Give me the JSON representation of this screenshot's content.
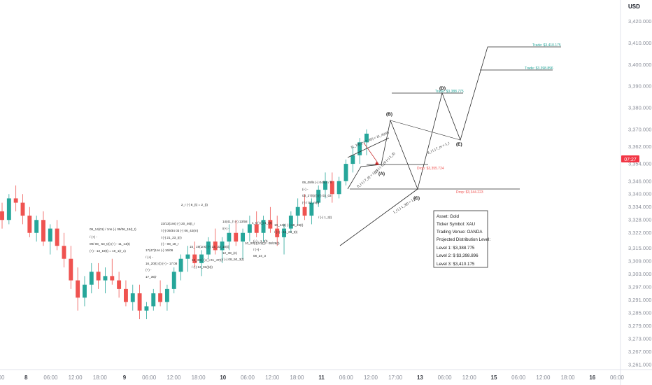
{
  "currency": "USD",
  "price_badge": "07:27",
  "chart_data": {
    "type": "candlestick",
    "y_axis": {
      "ticks": [
        "3,261.000",
        "3,267.000",
        "3,273.000",
        "3,279.000",
        "3,285.000",
        "3,291.000",
        "3,297.000",
        "3,303.000",
        "3,309.000",
        "3,315.000",
        "3,322.000",
        "3,328.000",
        "3,334.000",
        "3,340.000",
        "3,346.000",
        "3,354.000",
        "3,362.000",
        "3,370.000",
        "3,380.000",
        "3,390.000",
        "3,400.000",
        "3,410.000",
        "3,420.000"
      ],
      "ylim": [
        3258,
        3428
      ]
    },
    "x_axis": {
      "labels": [
        {
          "t": "00",
          "bold": false
        },
        {
          "t": "8",
          "bold": true
        },
        {
          "t": "06:00",
          "bold": false
        },
        {
          "t": "12:00",
          "bold": false
        },
        {
          "t": "18:00",
          "bold": false
        },
        {
          "t": "9",
          "bold": true
        },
        {
          "t": "06:00",
          "bold": false
        },
        {
          "t": "12:00",
          "bold": false
        },
        {
          "t": "18:00",
          "bold": false
        },
        {
          "t": "10",
          "bold": true
        },
        {
          "t": "06:00",
          "bold": false
        },
        {
          "t": "12:00",
          "bold": false
        },
        {
          "t": "18:00",
          "bold": false
        },
        {
          "t": "11",
          "bold": true
        },
        {
          "t": "06:00",
          "bold": false
        },
        {
          "t": "12:00",
          "bold": false
        },
        {
          "t": "17:00",
          "bold": false
        },
        {
          "t": "13",
          "bold": true
        },
        {
          "t": "06:00",
          "bold": false
        },
        {
          "t": "12:00",
          "bold": false
        },
        {
          "t": "15",
          "bold": true
        },
        {
          "t": "06:00",
          "bold": false
        },
        {
          "t": "12:00",
          "bold": false
        },
        {
          "t": "18:00",
          "bold": false
        },
        {
          "t": "16",
          "bold": true
        },
        {
          "t": "06:00",
          "bold": false
        }
      ]
    },
    "candles": [
      {
        "o": 3332,
        "h": 3336,
        "l": 3324,
        "c": 3328
      },
      {
        "o": 3328,
        "h": 3340,
        "l": 3326,
        "c": 3338
      },
      {
        "o": 3338,
        "h": 3344,
        "l": 3332,
        "c": 3336
      },
      {
        "o": 3336,
        "h": 3340,
        "l": 3326,
        "c": 3330
      },
      {
        "o": 3330,
        "h": 3334,
        "l": 3320,
        "c": 3322
      },
      {
        "o": 3322,
        "h": 3330,
        "l": 3318,
        "c": 3328
      },
      {
        "o": 3328,
        "h": 3332,
        "l": 3316,
        "c": 3318
      },
      {
        "o": 3318,
        "h": 3326,
        "l": 3312,
        "c": 3324
      },
      {
        "o": 3324,
        "h": 3328,
        "l": 3314,
        "c": 3316
      },
      {
        "o": 3316,
        "h": 3322,
        "l": 3306,
        "c": 3310
      },
      {
        "o": 3310,
        "h": 3316,
        "l": 3296,
        "c": 3300
      },
      {
        "o": 3300,
        "h": 3306,
        "l": 3286,
        "c": 3292
      },
      {
        "o": 3292,
        "h": 3302,
        "l": 3288,
        "c": 3298
      },
      {
        "o": 3298,
        "h": 3308,
        "l": 3294,
        "c": 3304
      },
      {
        "o": 3304,
        "h": 3308,
        "l": 3296,
        "c": 3300
      },
      {
        "o": 3300,
        "h": 3306,
        "l": 3294,
        "c": 3302
      },
      {
        "o": 3302,
        "h": 3310,
        "l": 3298,
        "c": 3300
      },
      {
        "o": 3300,
        "h": 3304,
        "l": 3292,
        "c": 3296
      },
      {
        "o": 3296,
        "h": 3300,
        "l": 3288,
        "c": 3290
      },
      {
        "o": 3290,
        "h": 3298,
        "l": 3286,
        "c": 3294
      },
      {
        "o": 3294,
        "h": 3298,
        "l": 3282,
        "c": 3286
      },
      {
        "o": 3286,
        "h": 3290,
        "l": 3282,
        "c": 3288
      },
      {
        "o": 3288,
        "h": 3296,
        "l": 3286,
        "c": 3294
      },
      {
        "o": 3294,
        "h": 3300,
        "l": 3288,
        "c": 3290
      },
      {
        "o": 3290,
        "h": 3298,
        "l": 3286,
        "c": 3296
      },
      {
        "o": 3296,
        "h": 3306,
        "l": 3294,
        "c": 3304
      },
      {
        "o": 3304,
        "h": 3312,
        "l": 3300,
        "c": 3310
      },
      {
        "o": 3310,
        "h": 3316,
        "l": 3304,
        "c": 3312
      },
      {
        "o": 3312,
        "h": 3318,
        "l": 3306,
        "c": 3308
      },
      {
        "o": 3308,
        "h": 3314,
        "l": 3302,
        "c": 3312
      },
      {
        "o": 3312,
        "h": 3320,
        "l": 3310,
        "c": 3318
      },
      {
        "o": 3318,
        "h": 3324,
        "l": 3312,
        "c": 3314
      },
      {
        "o": 3314,
        "h": 3320,
        "l": 3308,
        "c": 3318
      },
      {
        "o": 3318,
        "h": 3326,
        "l": 3314,
        "c": 3322
      },
      {
        "o": 3322,
        "h": 3328,
        "l": 3316,
        "c": 3318
      },
      {
        "o": 3318,
        "h": 3324,
        "l": 3310,
        "c": 3322
      },
      {
        "o": 3322,
        "h": 3330,
        "l": 3318,
        "c": 3326
      },
      {
        "o": 3326,
        "h": 3332,
        "l": 3320,
        "c": 3322
      },
      {
        "o": 3322,
        "h": 3330,
        "l": 3318,
        "c": 3328
      },
      {
        "o": 3328,
        "h": 3334,
        "l": 3322,
        "c": 3324
      },
      {
        "o": 3324,
        "h": 3330,
        "l": 3316,
        "c": 3320
      },
      {
        "o": 3320,
        "h": 3326,
        "l": 3312,
        "c": 3324
      },
      {
        "o": 3324,
        "h": 3332,
        "l": 3322,
        "c": 3330
      },
      {
        "o": 3330,
        "h": 3338,
        "l": 3326,
        "c": 3334
      },
      {
        "o": 3334,
        "h": 3340,
        "l": 3328,
        "c": 3330
      },
      {
        "o": 3330,
        "h": 3338,
        "l": 3326,
        "c": 3336
      },
      {
        "o": 3336,
        "h": 3344,
        "l": 3334,
        "c": 3342
      },
      {
        "o": 3342,
        "h": 3350,
        "l": 3338,
        "c": 3346
      },
      {
        "o": 3346,
        "h": 3350,
        "l": 3336,
        "c": 3340
      },
      {
        "o": 3340,
        "h": 3348,
        "l": 3338,
        "c": 3346
      },
      {
        "o": 3346,
        "h": 3356,
        "l": 3344,
        "c": 3354
      },
      {
        "o": 3354,
        "h": 3362,
        "l": 3350,
        "c": 3358
      },
      {
        "o": 3358,
        "h": 3366,
        "l": 3354,
        "c": 3364
      },
      {
        "o": 3364,
        "h": 3370,
        "l": 3358,
        "c": 3368
      }
    ]
  },
  "notes": [
    {
      "id": "n1",
      "text": "09_14(01) / 1ns (-) 09/06_15(t_t)"
    },
    {
      "id": "n2",
      "text": "/ (+) -"
    },
    {
      "id": "n3",
      "text": "09/ 08_ 53_t(t) (+) - 11_14(t)"
    },
    {
      "id": "n4",
      "text": "(+) - 13_19(t) = 10_1(r_c)"
    },
    {
      "id": "n5",
      "text": "17(47)1ns (-) 16/06"
    },
    {
      "id": "n6",
      "text": "/ (+) -"
    },
    {
      "id": "n7",
      "text": "16_20(t) (t) (+) - 17:08"
    },
    {
      "id": "n8",
      "text": "(+) -"
    },
    {
      "id": "n9",
      "text": "17_35(r"
    },
    {
      "id": "n10",
      "text": "23/13(1ns) (-) 20_46(t_r"
    },
    {
      "id": "n11",
      "text": "/ (-) 09/34 03 (-) 06_42(m)"
    },
    {
      "id": "n12",
      "text": "/ (-) 21_23_t(r)"
    },
    {
      "id": "n13",
      "text": "(-) - 08_18_r"
    },
    {
      "id": "n14",
      "text": "2_r (-) 8_(t) = 2_(t)"
    },
    {
      "id": "n15",
      "text": "14(41_h (-) 13/58"
    },
    {
      "id": "n16",
      "text": "/(+) -"
    },
    {
      "id": "n17",
      "text": "15_ 19(1ns) (-) 14_33_10(t)"
    },
    {
      "id": "n18",
      "text": "12_39 (+) (-) 01_47(t)"
    },
    {
      "id": "n19",
      "text": "/ (-) 12_01(t)(t)"
    },
    {
      "id": "n20",
      "text": "12_38_(n)"
    },
    {
      "id": "n21",
      "text": "/ (-) 08_50_3(t)"
    },
    {
      "id": "n22",
      "text": "10_00(t)(10)(t) - 08/29(t)"
    },
    {
      "id": "n23",
      "text": "/ (+) -"
    },
    {
      "id": "n24",
      "text": "08_24_3"
    },
    {
      "id": "n25",
      "text": "06_08/ls (-) 04/44 / ll"
    },
    {
      "id": "n26",
      "text": "(+) -"
    },
    {
      "id": "n27",
      "text": "03_27(t)(r) (-) 03_03"
    },
    {
      "id": "n28",
      "text": "(-) / 02_m(t)"
    },
    {
      "id": "n29",
      "text": "10_14(t) (-) 18_45(t)"
    },
    {
      "id": "n30",
      "text": "/ (+) - 15_23_t(t)"
    },
    {
      "id": "n31",
      "text": "/ (-) 1_t(t)"
    },
    {
      "id": "n32",
      "text": "1_t(r) (-) 1_t(t)"
    },
    {
      "id": "n33",
      "text": "(+) - 1_t(t)"
    }
  ],
  "angled_notes": [
    {
      "id": "a1",
      "text": "11_1(t) (+) 7_4(t) = 11_4(r)(t)"
    },
    {
      "id": "a2",
      "text": "8_t (-) 7_(t) = 1_(t)"
    },
    {
      "id": "a3",
      "text": "1_t (-) 1_3(t) = 1_t(t)"
    },
    {
      "id": "a4",
      "text": "8_t (-) 7_m = 1_t"
    },
    {
      "id": "a5",
      "text": "8_t (-) 1_(t) (+) 1_(t)"
    }
  ],
  "points": {
    "A": "(A)",
    "B": "(B)",
    "C": "(C)",
    "D": "(D)",
    "E": "(E)"
  },
  "targets": [
    {
      "label": "Trade: $3,410.175",
      "color": "#26a69a"
    },
    {
      "label": "Trade: $3,398.896",
      "color": "#26a69a"
    },
    {
      "label": "Trade: $3,388.775",
      "color": "#26a69a"
    },
    {
      "label": "Drop: $3,355.724",
      "color": "#ef5350"
    },
    {
      "label": "Drop: $3,344.223",
      "color": "#ef5350"
    }
  ],
  "info_box": {
    "lines": [
      "Asset: Gold",
      "Ticker Symbol: XAU",
      "Trading Venue: OANDA",
      "Projected Distribution Level:",
      "Level 1: $3,388.775",
      "Level 2: $ $3,398.896",
      "Level 3: $3,410.175"
    ]
  },
  "colors": {
    "up": "#26a69a",
    "down": "#ef5350",
    "badge": "#f23645",
    "axis_text": "#8a8e99"
  }
}
